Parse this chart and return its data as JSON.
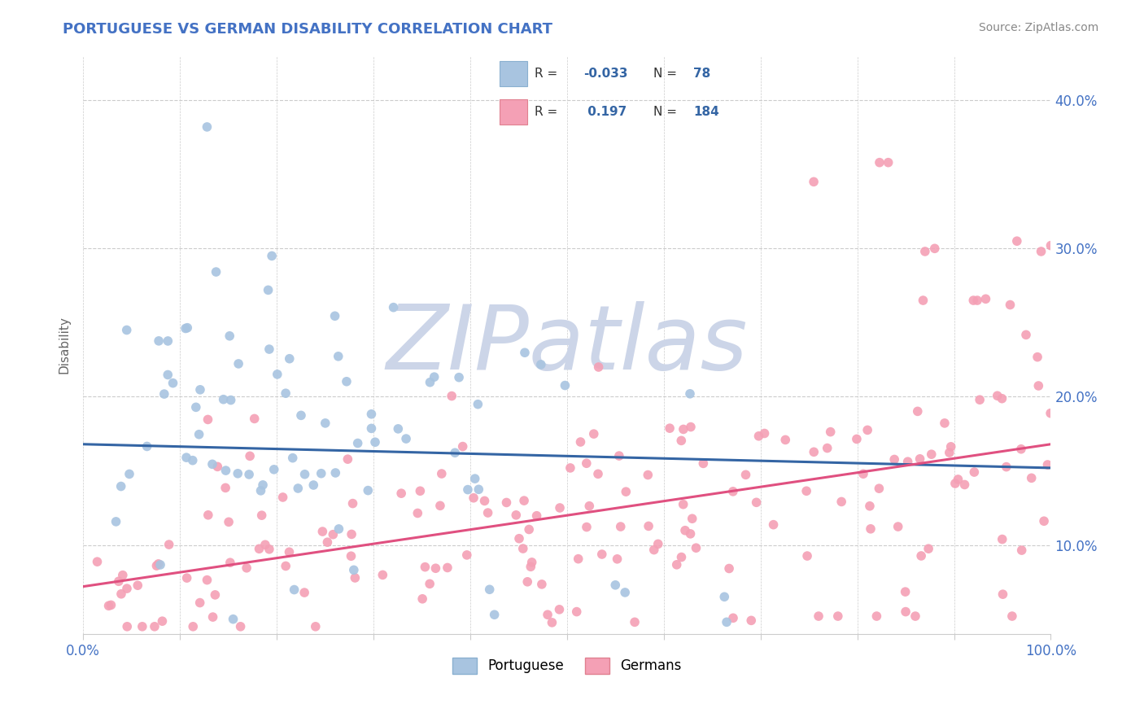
{
  "title": "PORTUGUESE VS GERMAN DISABILITY CORRELATION CHART",
  "source": "Source: ZipAtlas.com",
  "ylabel": "Disability",
  "xlim": [
    0.0,
    1.0
  ],
  "ylim": [
    0.04,
    0.43
  ],
  "portuguese_color": "#a8c4e0",
  "german_color": "#f4a0b5",
  "portuguese_line_color": "#3465a4",
  "german_line_color": "#e05080",
  "legend_label_portuguese": "Portuguese",
  "legend_label_german": "Germans",
  "R_portuguese": -0.033,
  "N_portuguese": 78,
  "R_german": 0.197,
  "N_german": 184,
  "grid_color": "#cccccc",
  "background_color": "#ffffff",
  "title_color": "#4472c4",
  "watermark_color": "#ccd5e8",
  "pt_line_y0": 0.168,
  "pt_line_y1": 0.152,
  "de_line_y0": 0.072,
  "de_line_y1": 0.168
}
